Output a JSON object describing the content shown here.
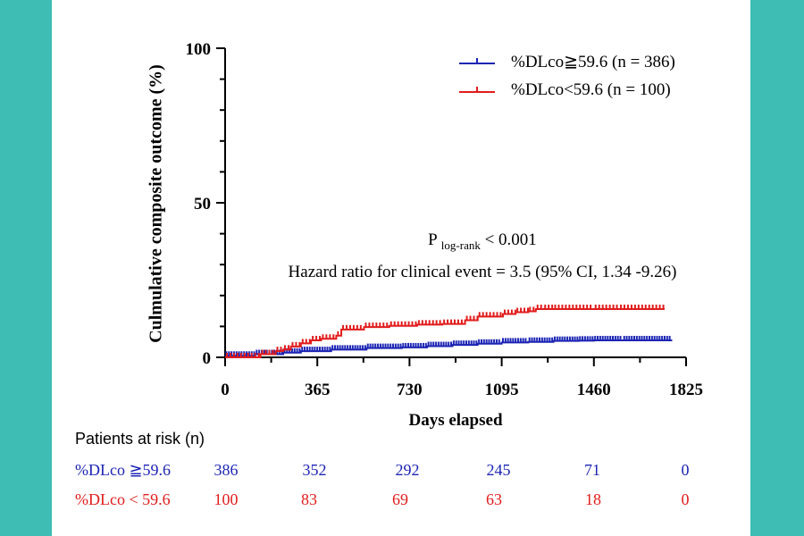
{
  "chart_data": {
    "type": "line",
    "title": "",
    "ylabel": "Culmulative composite outcome (%)",
    "xlabel": "Days elapsed",
    "xlim": [
      0,
      1825
    ],
    "ylim": [
      0,
      100
    ],
    "xticks": [
      "0",
      "365",
      "730",
      "1095",
      "1460",
      "1825"
    ],
    "yticks": [
      "0",
      "50",
      "100"
    ],
    "series": [
      {
        "name": "%DLco≧59.6 (n = 386)",
        "color": "#1c25b4",
        "x": [
          0,
          120,
          230,
          300,
          420,
          560,
          700,
          800,
          900,
          1000,
          1095,
          1200,
          1300,
          1400,
          1460,
          1575,
          1770
        ],
        "y": [
          0.5,
          1,
          1.5,
          2,
          2.5,
          3,
          3.2,
          3.6,
          4,
          4.4,
          4.8,
          5,
          5.3,
          5.4,
          5.5,
          5.5,
          5.5
        ]
      },
      {
        "name": "%DLco<59.6 (n = 100)",
        "color": "#e11c1c",
        "x": [
          0,
          140,
          200,
          230,
          260,
          300,
          340,
          380,
          440,
          460,
          550,
          650,
          760,
          860,
          950,
          1000,
          1100,
          1150,
          1200,
          1230,
          1260,
          1300,
          1460,
          1560,
          1740
        ],
        "y": [
          0,
          1,
          2,
          2.5,
          3.5,
          4.5,
          5.5,
          6,
          7,
          9,
          9.8,
          10.2,
          10.6,
          10.8,
          12,
          13.2,
          14,
          14.6,
          14.9,
          15.6,
          15.6,
          15.6,
          15.6,
          15.6,
          15.6
        ]
      }
    ],
    "annotations": {
      "p_prefix": "P",
      "p_sub": "log-rank",
      "p_suffix": "< 0.001",
      "hazard": "Hazard ratio for clinical event = 3.5 (95% CI, 1.34 -9.26)"
    },
    "risk_table": {
      "title": "Patients at risk (n)",
      "rows": [
        {
          "label": "%DLco ≧59.6",
          "values": [
            "386",
            "352",
            "292",
            "245",
            "71",
            "0"
          ],
          "color": "#1c25b4"
        },
        {
          "label": "%DLco <  59.6",
          "values": [
            "100",
            "83",
            "69",
            "63",
            "18",
            "0"
          ],
          "color": "#e11c1c"
        }
      ]
    },
    "legend_position": "top-right"
  }
}
